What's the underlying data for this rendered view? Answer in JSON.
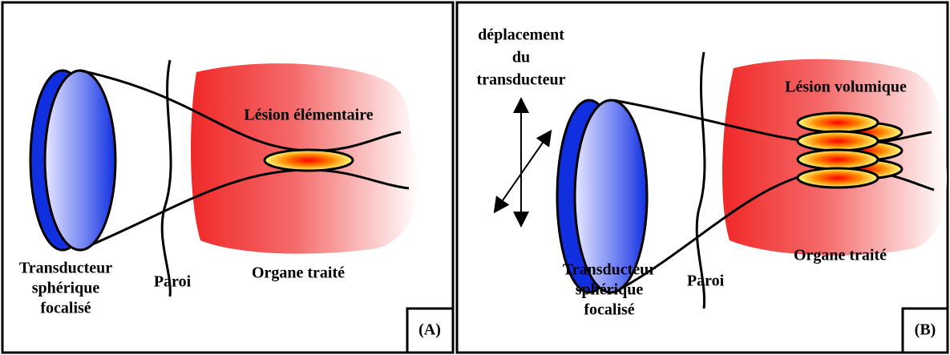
{
  "panels": [
    {
      "label": "(A)",
      "transducer": [
        "Transducteur",
        "sphérique",
        "focalisé"
      ],
      "wall": "Paroi",
      "lesion": "Lésion élémentaire",
      "organ": "Organe traité"
    },
    {
      "label": "(B)",
      "motion": [
        "déplacement",
        "du",
        "transducteur"
      ],
      "transducer": [
        "Transducteur",
        "sphérique",
        "focalisé"
      ],
      "wall": "Paroi",
      "lesion": "Lésion volumique",
      "organ": "Organe traité"
    }
  ]
}
